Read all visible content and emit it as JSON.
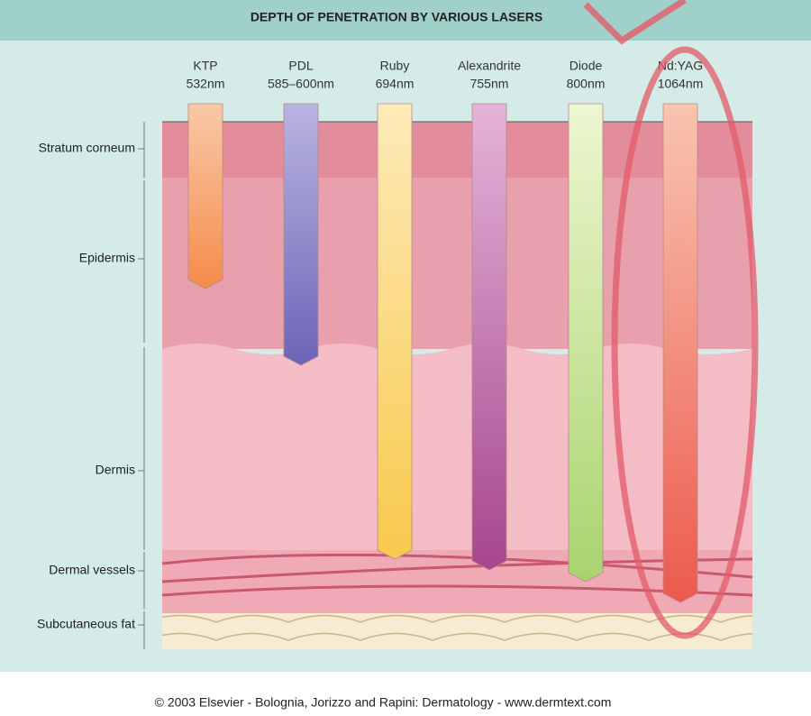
{
  "header": {
    "title": "DEPTH OF PENETRATION BY VARIOUS LASERS"
  },
  "lasers": [
    {
      "name": "KTP",
      "wavelength": "532nm"
    },
    {
      "name": "PDL",
      "wavelength": "585–600nm"
    },
    {
      "name": "Ruby",
      "wavelength": "694nm"
    },
    {
      "name": "Alexandrite",
      "wavelength": "755nm"
    },
    {
      "name": "Diode",
      "wavelength": "800nm"
    },
    {
      "name": "Nd:YAG",
      "wavelength": "1064nm"
    }
  ],
  "layers": [
    "Stratum corneum",
    "Epidermis",
    "Dermis",
    "Dermal vessels",
    "Subcutaneous fat"
  ],
  "footer": "© 2003 Elsevier - Bolognia, Jorizzo and Rapini: Dermatology - www.dermtext.com"
}
